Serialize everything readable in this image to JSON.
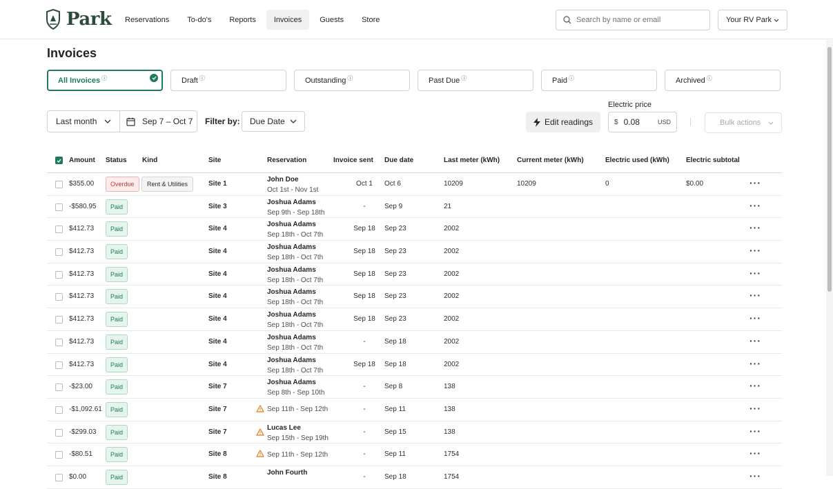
{
  "brand": {
    "name": "Park"
  },
  "nav": {
    "items": [
      {
        "label": "Reservations"
      },
      {
        "label": "To-do's"
      },
      {
        "label": "Reports"
      },
      {
        "label": "Invoices",
        "active": true
      },
      {
        "label": "Guests"
      },
      {
        "label": "Store"
      }
    ]
  },
  "search": {
    "placeholder": "Search by name or email"
  },
  "park_select": {
    "value": "Your RV Park"
  },
  "page": {
    "title": "Invoices"
  },
  "tabs": [
    {
      "label": "All Invoices",
      "active": true
    },
    {
      "label": "Draft"
    },
    {
      "label": "Outstanding"
    },
    {
      "label": "Past Due"
    },
    {
      "label": "Paid"
    },
    {
      "label": "Archived"
    }
  ],
  "filters": {
    "period": "Last month",
    "range": "Sep 7 – Oct 7",
    "filter_by_label": "Filter by:",
    "filter_by_value": "Due Date",
    "edit_readings": "Edit readings",
    "electric_price_label": "Electric price",
    "currency_symbol": "$",
    "electric_price_value": "0.08",
    "electric_price_unit": "USD",
    "bulk_actions": "Bulk actions"
  },
  "table": {
    "columns": {
      "amount": "Amount",
      "status": "Status",
      "kind": "Kind",
      "site": "Site",
      "reservation": "Reservation",
      "invoice_sent": "Invoice sent",
      "due_date": "Due date",
      "last_meter": "Last meter (kWh)",
      "current_meter": "Current meter (kWh)",
      "electric_used": "Electric used (kWh)",
      "electric_subtotal": "Electric subtotal"
    },
    "rows": [
      {
        "amount": "$355.00",
        "status": "Overdue",
        "kind": "Rent & Utilities",
        "site": "Site 1",
        "res_name": "John Doe",
        "res_dates": "Oct 1st - Nov 1st",
        "sent": "Oct 1",
        "due": "Oct 6",
        "last": "10209",
        "current": "10209",
        "used": "0",
        "subtotal": "$0.00"
      },
      {
        "amount": "-$580.95",
        "status": "Paid",
        "kind": "",
        "site": "Site 3",
        "res_name": "Joshua Adams",
        "res_dates": "Sep 9th - Sep 18th",
        "sent": "-",
        "due": "Sep 9",
        "last": "21",
        "current": "",
        "used": "",
        "subtotal": ""
      },
      {
        "amount": "$412.73",
        "status": "Paid",
        "kind": "",
        "site": "Site 4",
        "res_name": "Joshua Adams",
        "res_dates": "Sep 18th - Oct 7th",
        "sent": "Sep 18",
        "due": "Sep 23",
        "last": "2002",
        "current": "",
        "used": "",
        "subtotal": ""
      },
      {
        "amount": "$412.73",
        "status": "Paid",
        "kind": "",
        "site": "Site 4",
        "res_name": "Joshua Adams",
        "res_dates": "Sep 18th - Oct 7th",
        "sent": "Sep 18",
        "due": "Sep 23",
        "last": "2002",
        "current": "",
        "used": "",
        "subtotal": ""
      },
      {
        "amount": "$412.73",
        "status": "Paid",
        "kind": "",
        "site": "Site 4",
        "res_name": "Joshua Adams",
        "res_dates": "Sep 18th - Oct 7th",
        "sent": "Sep 18",
        "due": "Sep 23",
        "last": "2002",
        "current": "",
        "used": "",
        "subtotal": ""
      },
      {
        "amount": "$412.73",
        "status": "Paid",
        "kind": "",
        "site": "Site 4",
        "res_name": "Joshua Adams",
        "res_dates": "Sep 18th - Oct 7th",
        "sent": "Sep 18",
        "due": "Sep 23",
        "last": "2002",
        "current": "",
        "used": "",
        "subtotal": ""
      },
      {
        "amount": "$412.73",
        "status": "Paid",
        "kind": "",
        "site": "Site 4",
        "res_name": "Joshua Adams",
        "res_dates": "Sep 18th - Oct 7th",
        "sent": "Sep 18",
        "due": "Sep 23",
        "last": "2002",
        "current": "",
        "used": "",
        "subtotal": ""
      },
      {
        "amount": "$412.73",
        "status": "Paid",
        "kind": "",
        "site": "Site 4",
        "res_name": "Joshua Adams",
        "res_dates": "Sep 18th - Oct 7th",
        "sent": "-",
        "due": "Sep 18",
        "last": "2002",
        "current": "",
        "used": "",
        "subtotal": ""
      },
      {
        "amount": "$412.73",
        "status": "Paid",
        "kind": "",
        "site": "Site 4",
        "res_name": "Joshua Adams",
        "res_dates": "Sep 18th - Oct 7th",
        "sent": "Sep 18",
        "due": "Sep 18",
        "last": "2002",
        "current": "",
        "used": "",
        "subtotal": ""
      },
      {
        "amount": "-$23.00",
        "status": "Paid",
        "kind": "",
        "site": "Site 7",
        "res_name": "Joshua Adams",
        "res_dates": "Sep 8th - Sep 10th",
        "sent": "-",
        "due": "Sep 8",
        "last": "138",
        "current": "",
        "used": "",
        "subtotal": ""
      },
      {
        "amount": "-$1,092.61",
        "status": "Paid",
        "kind": "",
        "site": "Site 7",
        "res_name": "",
        "res_dates": "Sep 11th - Sep 12th",
        "warning": true,
        "sent": "-",
        "due": "Sep 11",
        "last": "138",
        "current": "",
        "used": "",
        "subtotal": ""
      },
      {
        "amount": "-$299.03",
        "status": "Paid",
        "kind": "",
        "site": "Site 7",
        "res_name": "Lucas Lee",
        "res_dates": "Sep 15th - Sep 19th",
        "warning": true,
        "sent": "-",
        "due": "Sep 15",
        "last": "138",
        "current": "",
        "used": "",
        "subtotal": ""
      },
      {
        "amount": "-$80.51",
        "status": "Paid",
        "kind": "",
        "site": "Site 8",
        "res_name": "",
        "res_dates": "Sep 11th - Sep 12th",
        "warning": true,
        "sent": "-",
        "due": "Sep 11",
        "last": "1754",
        "current": "",
        "used": "",
        "subtotal": ""
      },
      {
        "amount": "$0.00",
        "status": "Paid",
        "kind": "",
        "site": "Site 8",
        "res_name": "John Fourth",
        "res_dates": "",
        "sent": "-",
        "due": "Sep 18",
        "last": "1754",
        "current": "",
        "used": "",
        "subtotal": ""
      }
    ]
  },
  "colors": {
    "accent": "#1f7a5a",
    "paid_bg": "#e6f5ec",
    "overdue_text": "#c23a3a",
    "warning": "#e07b1a"
  }
}
